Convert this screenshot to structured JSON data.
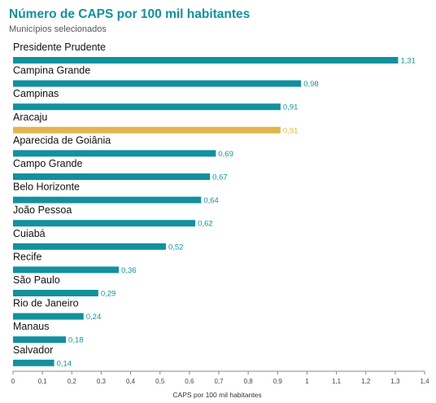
{
  "colors": {
    "bar": "#12919d",
    "highlight": "#e3b54f",
    "title": "#12919d",
    "axis": "#888888"
  },
  "chart_data": {
    "type": "bar",
    "orientation": "horizontal",
    "title": "Número de CAPS por 100 mil habitantes",
    "subtitle": "Municípios selecionados",
    "xlabel": "CAPS por 100 mil habitantes",
    "ylabel": "",
    "xlim": [
      0,
      1.4
    ],
    "xticks": [
      "0",
      "0,1",
      "0,2",
      "0,3",
      "0,4",
      "0,5",
      "0,6",
      "0,7",
      "0,8",
      "0,9",
      "1",
      "1,1",
      "1,2",
      "1,3",
      "1,4"
    ],
    "grid": false,
    "highlighted_category": "Aracaju",
    "categories": [
      "Presidente Prudente",
      "Campina Grande",
      "Campinas",
      "Aracaju",
      "Aparecida de Goiânia",
      "Campo Grande",
      "Belo Horizonte",
      "João Pessoa",
      "Cuiabá",
      "Recife",
      "São Paulo",
      "Rio de Janeiro",
      "Manaus",
      "Salvador"
    ],
    "values": [
      1.31,
      0.98,
      0.91,
      0.91,
      0.69,
      0.67,
      0.64,
      0.62,
      0.52,
      0.36,
      0.29,
      0.24,
      0.18,
      0.14
    ],
    "value_labels": [
      "1,31",
      "0,98",
      "0,91",
      "0,91",
      "0,69",
      "0,67",
      "0,64",
      "0,62",
      "0,52",
      "0,36",
      "0,29",
      "0,24",
      "0,18",
      "0,14"
    ]
  }
}
